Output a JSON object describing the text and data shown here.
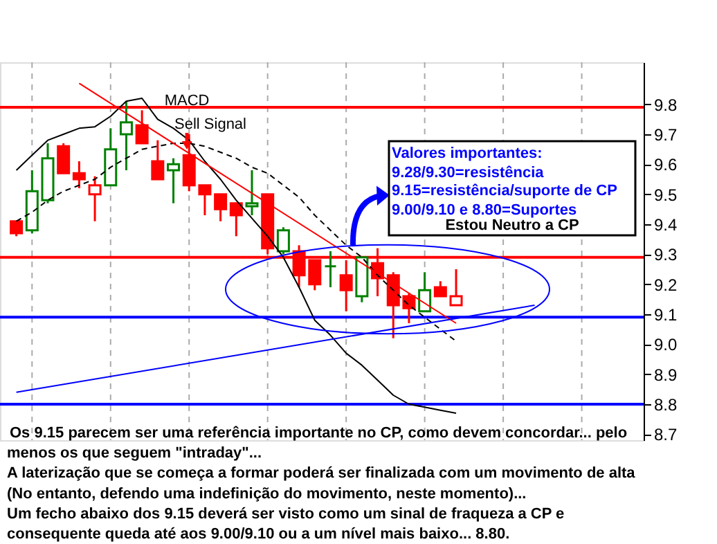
{
  "chart_data": {
    "type": "candlestick",
    "categories": [
      null,
      null,
      null,
      null,
      null,
      null,
      null,
      null,
      null,
      null,
      null,
      null,
      null,
      null,
      null,
      null,
      null,
      null,
      null,
      null,
      null,
      null,
      null,
      null,
      null,
      null,
      null,
      null,
      null,
      null,
      null,
      null,
      null,
      null,
      null,
      null,
      null,
      null,
      null,
      null
    ],
    "ohlc": [
      [
        9.41,
        9.41,
        9.36,
        9.37
      ],
      [
        9.38,
        9.58,
        9.37,
        9.51
      ],
      [
        9.48,
        9.67,
        9.47,
        9.62
      ],
      [
        9.66,
        9.67,
        9.57,
        9.57
      ],
      [
        9.57,
        9.61,
        9.52,
        9.55
      ],
      [
        9.5,
        9.56,
        9.41,
        9.53
      ],
      [
        9.53,
        9.72,
        9.53,
        9.65
      ],
      [
        9.7,
        9.81,
        9.58,
        9.74
      ],
      [
        9.73,
        9.78,
        9.67,
        9.67
      ],
      [
        9.61,
        9.68,
        9.55,
        9.55
      ],
      [
        9.58,
        9.62,
        9.47,
        9.6
      ],
      [
        9.63,
        9.7,
        9.51,
        9.53
      ],
      [
        9.53,
        9.53,
        9.43,
        9.5
      ],
      [
        9.5,
        9.5,
        9.41,
        9.45
      ],
      [
        9.47,
        9.47,
        9.36,
        9.43
      ],
      [
        9.46,
        9.58,
        9.43,
        9.47
      ],
      [
        9.5,
        9.5,
        9.3,
        9.32
      ],
      [
        9.31,
        9.39,
        9.3,
        9.38
      ],
      [
        9.31,
        9.33,
        9.19,
        9.23
      ],
      [
        9.28,
        9.28,
        9.18,
        9.2
      ],
      [
        9.26,
        9.31,
        9.19,
        9.26
      ],
      [
        9.23,
        9.28,
        9.11,
        9.18
      ],
      [
        9.16,
        9.29,
        9.14,
        9.29
      ],
      [
        9.27,
        9.32,
        9.16,
        9.22
      ],
      [
        9.23,
        9.24,
        9.02,
        9.13
      ],
      [
        9.16,
        9.17,
        9.07,
        9.12
      ],
      [
        9.11,
        9.24,
        9.11,
        9.18
      ],
      [
        9.19,
        9.21,
        9.16,
        9.16
      ],
      [
        9.13,
        9.25,
        9.13,
        9.16
      ],
      null,
      null,
      null,
      null,
      null,
      null,
      null,
      null,
      null,
      null,
      null
    ],
    "colors": [
      "#ff0000",
      "#008000",
      "#008000",
      "#ff0000",
      "#ff0000",
      "#ff0000",
      "#008000",
      "#008000",
      "#ff0000",
      "#ff0000",
      "#008000",
      "#ff0000",
      "#ff0000",
      "#ff0000",
      "#ff0000",
      "#008000",
      "#ff0000",
      "#008000",
      "#ff0000",
      "#ff0000",
      "#008000",
      "#ff0000",
      "#008000",
      "#ff0000",
      "#ff0000",
      "#ff0000",
      "#008000",
      "#ff0000",
      "#ff0000",
      null,
      null,
      null,
      null,
      null,
      null,
      null,
      null,
      null,
      null,
      null
    ],
    "series": [
      {
        "type": "line",
        "color": "#000000",
        "line_style": "solid",
        "values": [
          9.58,
          9.63,
          9.68,
          9.7,
          9.72,
          9.725,
          9.76,
          9.81,
          9.82,
          9.75,
          9.72,
          9.68,
          9.61,
          9.55,
          9.48,
          9.42,
          9.36,
          9.29,
          9.19,
          9.08,
          9.03,
          8.97,
          8.93,
          8.88,
          8.83,
          8.8,
          8.79,
          8.78,
          8.77,
          null,
          null,
          null,
          null,
          null,
          null,
          null,
          null,
          null,
          null,
          null
        ]
      },
      {
        "type": "line",
        "color": "#000000",
        "line_style": "dashed",
        "values": [
          9.41,
          9.44,
          9.48,
          9.51,
          9.53,
          9.55,
          9.59,
          9.62,
          9.65,
          9.66,
          9.67,
          9.67,
          9.66,
          9.64,
          9.62,
          9.59,
          9.57,
          9.53,
          9.49,
          9.43,
          9.38,
          9.33,
          9.29,
          9.23,
          9.18,
          9.13,
          9.09,
          9.05,
          9.01,
          null,
          null,
          null,
          null,
          null,
          null,
          null,
          null,
          null,
          null,
          null
        ]
      },
      {
        "type": "line",
        "color": "#ff0000",
        "line_style": "solid",
        "values": [
          null,
          null,
          null,
          null,
          9.87,
          null,
          null,
          null,
          null,
          null,
          null,
          null,
          null,
          null,
          null,
          null,
          null,
          null,
          null,
          null,
          null,
          null,
          null,
          null,
          null,
          null,
          null,
          null,
          9.07,
          null,
          null,
          null,
          null,
          null,
          null,
          null,
          null,
          null,
          null,
          null
        ]
      },
      {
        "type": "line",
        "color": "#0000ff",
        "line_style": "solid",
        "values": [
          8.84,
          null,
          null,
          null,
          null,
          null,
          null,
          null,
          null,
          null,
          null,
          null,
          null,
          null,
          null,
          null,
          null,
          null,
          null,
          null,
          null,
          null,
          null,
          null,
          null,
          null,
          null,
          null,
          null,
          null,
          null,
          null,
          null,
          9.13,
          null,
          null,
          null,
          null,
          null,
          null
        ]
      }
    ],
    "ylim": [
      8.68,
      9.94
    ],
    "yticks": [
      8.7,
      8.8,
      8.9,
      {
        "value": 9,
        "label": "9.0"
      },
      9.1,
      9.2,
      9.3,
      9.4,
      9.5,
      9.6,
      9.7,
      9.8
    ],
    "ref_lines": [
      {
        "axis": "y",
        "value": 9.79,
        "color": "#ff0000"
      },
      {
        "axis": "y",
        "value": 9.29,
        "color": "#ff0000"
      },
      {
        "axis": "y",
        "value": 9.09,
        "color": "#0000ff"
      },
      {
        "axis": "y",
        "value": 8.8,
        "color": "#0000ff"
      }
    ],
    "grid": "x",
    "tick_labels": "y",
    "annotations": [
      "MACD",
      "Sell Signal",
      "Valores importantes:",
      "9.28/9.30=resistência",
      "9.15=resistência/suporte de CP",
      "9.00/9.10 e  8.80=Suportes",
      "Estou Neutro a CP",
      "Os 9.15 parecem ser uma referência importante no CP, como devem concordar... pelo",
      "menos os que seguem \"intraday\"...",
      "A laterização que se começa a formar poderá ser finalizada com um movimento de alta",
      "(No entanto, defendo uma indefinição do movimento, neste momento)...",
      "Um fecho abaixo dos 9.15 deverá ser visto como um sinal de fraqueza a CP e",
      "consequente queda até aos 9.00/9.10 ou a um nível mais baixo... 8.80."
    ]
  }
}
